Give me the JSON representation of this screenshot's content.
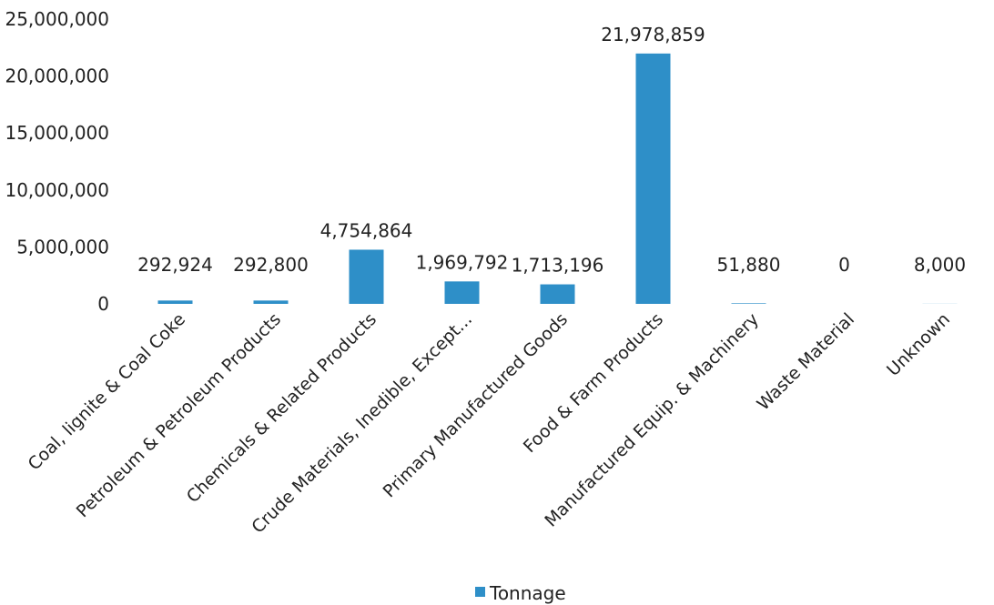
{
  "chart_data": {
    "type": "bar",
    "title": "",
    "xlabel": "",
    "ylabel": "",
    "categories": [
      "Coal, lignite & Coal Coke",
      "Petroleum & Petroleum Products",
      "Chemicals & Related Products",
      "Crude Materials, Inedible, Except...",
      "Primary Manufactured Goods",
      "Food & Farm Products",
      "Manufactured Equip. & Machinery",
      "Waste Material",
      "Unknown"
    ],
    "series": [
      {
        "name": "Tonnage",
        "color": "#2e8fc8",
        "values": [
          292924,
          292800,
          4754864,
          1969792,
          1713196,
          21978859,
          51880,
          0,
          8000
        ],
        "data_labels": [
          "292,924",
          "292,800",
          "4,754,864",
          "1,969,792",
          "1,713,196",
          "21,978,859",
          "51,880",
          "0",
          "8,000"
        ]
      }
    ],
    "ylim": [
      0,
      25000000
    ],
    "yticks": [
      0,
      5000000,
      10000000,
      15000000,
      20000000,
      25000000
    ],
    "ytick_labels": [
      "0",
      "5,000,000",
      "10,000,000",
      "15,000,000",
      "20,000,000",
      "25,000,000"
    ],
    "grid": false,
    "legend": {
      "position": "bottom",
      "entries": [
        "Tonnage"
      ]
    }
  }
}
